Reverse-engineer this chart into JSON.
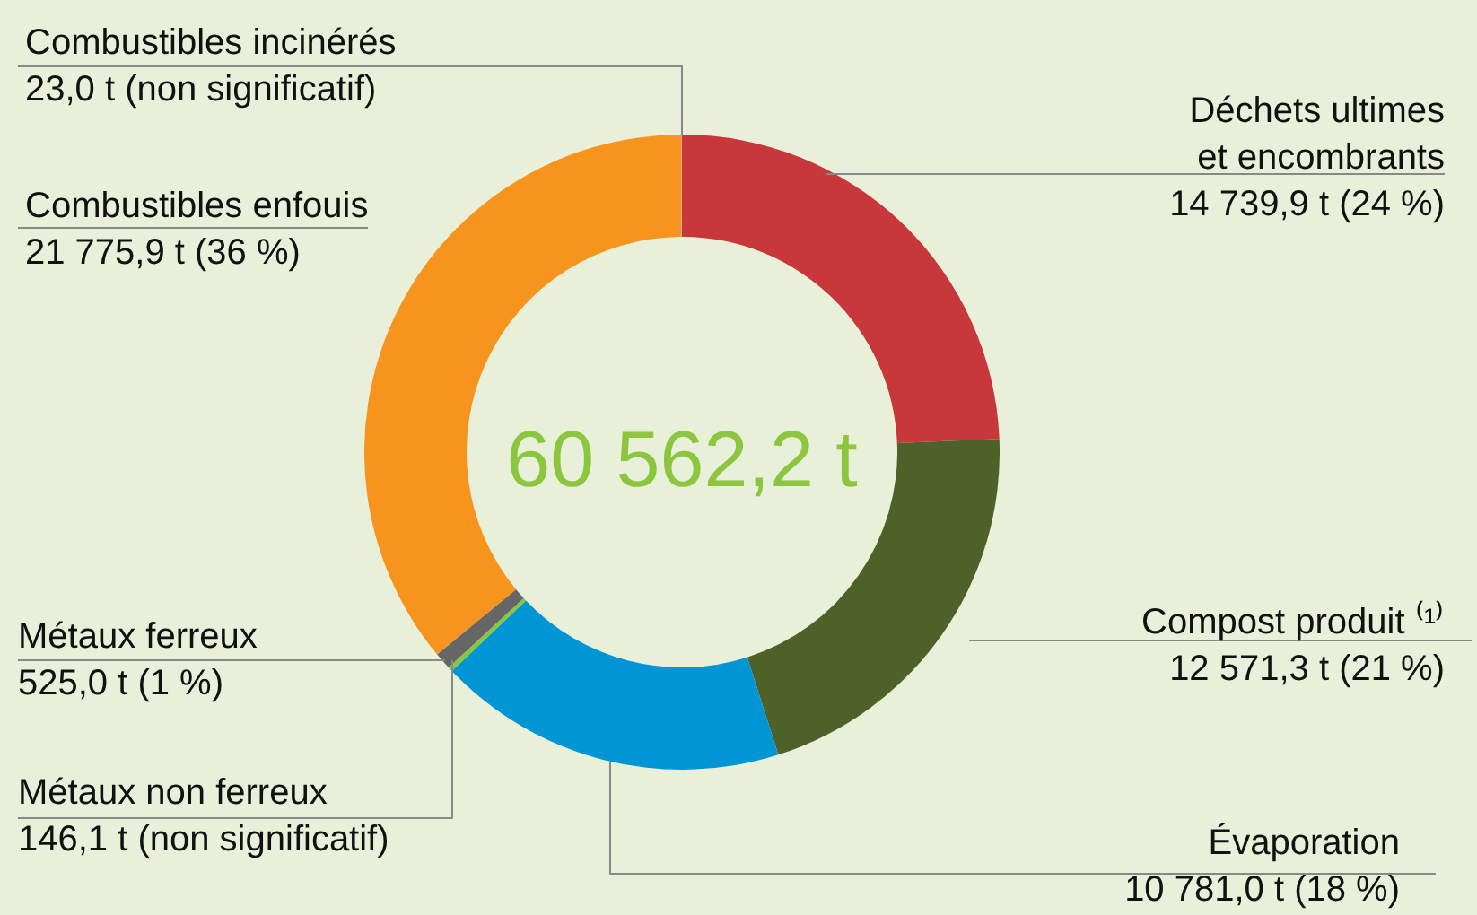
{
  "chart_data": {
    "type": "donut",
    "categories": [
      "Déchets ultimes\net encombrants",
      "Compost produit ⁽¹⁾",
      "Évaporation",
      "Métaux non ferreux",
      "Métaux ferreux",
      "Combustibles enfouis",
      "Combustibles incinérés"
    ],
    "values": [
      14739.9,
      12571.3,
      10781.0,
      146.1,
      525.0,
      21775.9,
      23.0
    ],
    "colors": [
      "#c8383a",
      "#4e6128",
      "#0096d6",
      "#8cc63f",
      "#666666",
      "#f7941d",
      "#f2a49c"
    ],
    "value_labels": [
      "14 739,9 t (24 %)",
      "12 571,3 t (21 %)",
      "10 781,0 t (18 %)",
      "146,1 t (non significatif)",
      "525,0 t (1 %)",
      "21 775,9 t (36 %)",
      "23,0 t (non significatif)"
    ],
    "annotations": [
      "60 562,2 t"
    ]
  }
}
